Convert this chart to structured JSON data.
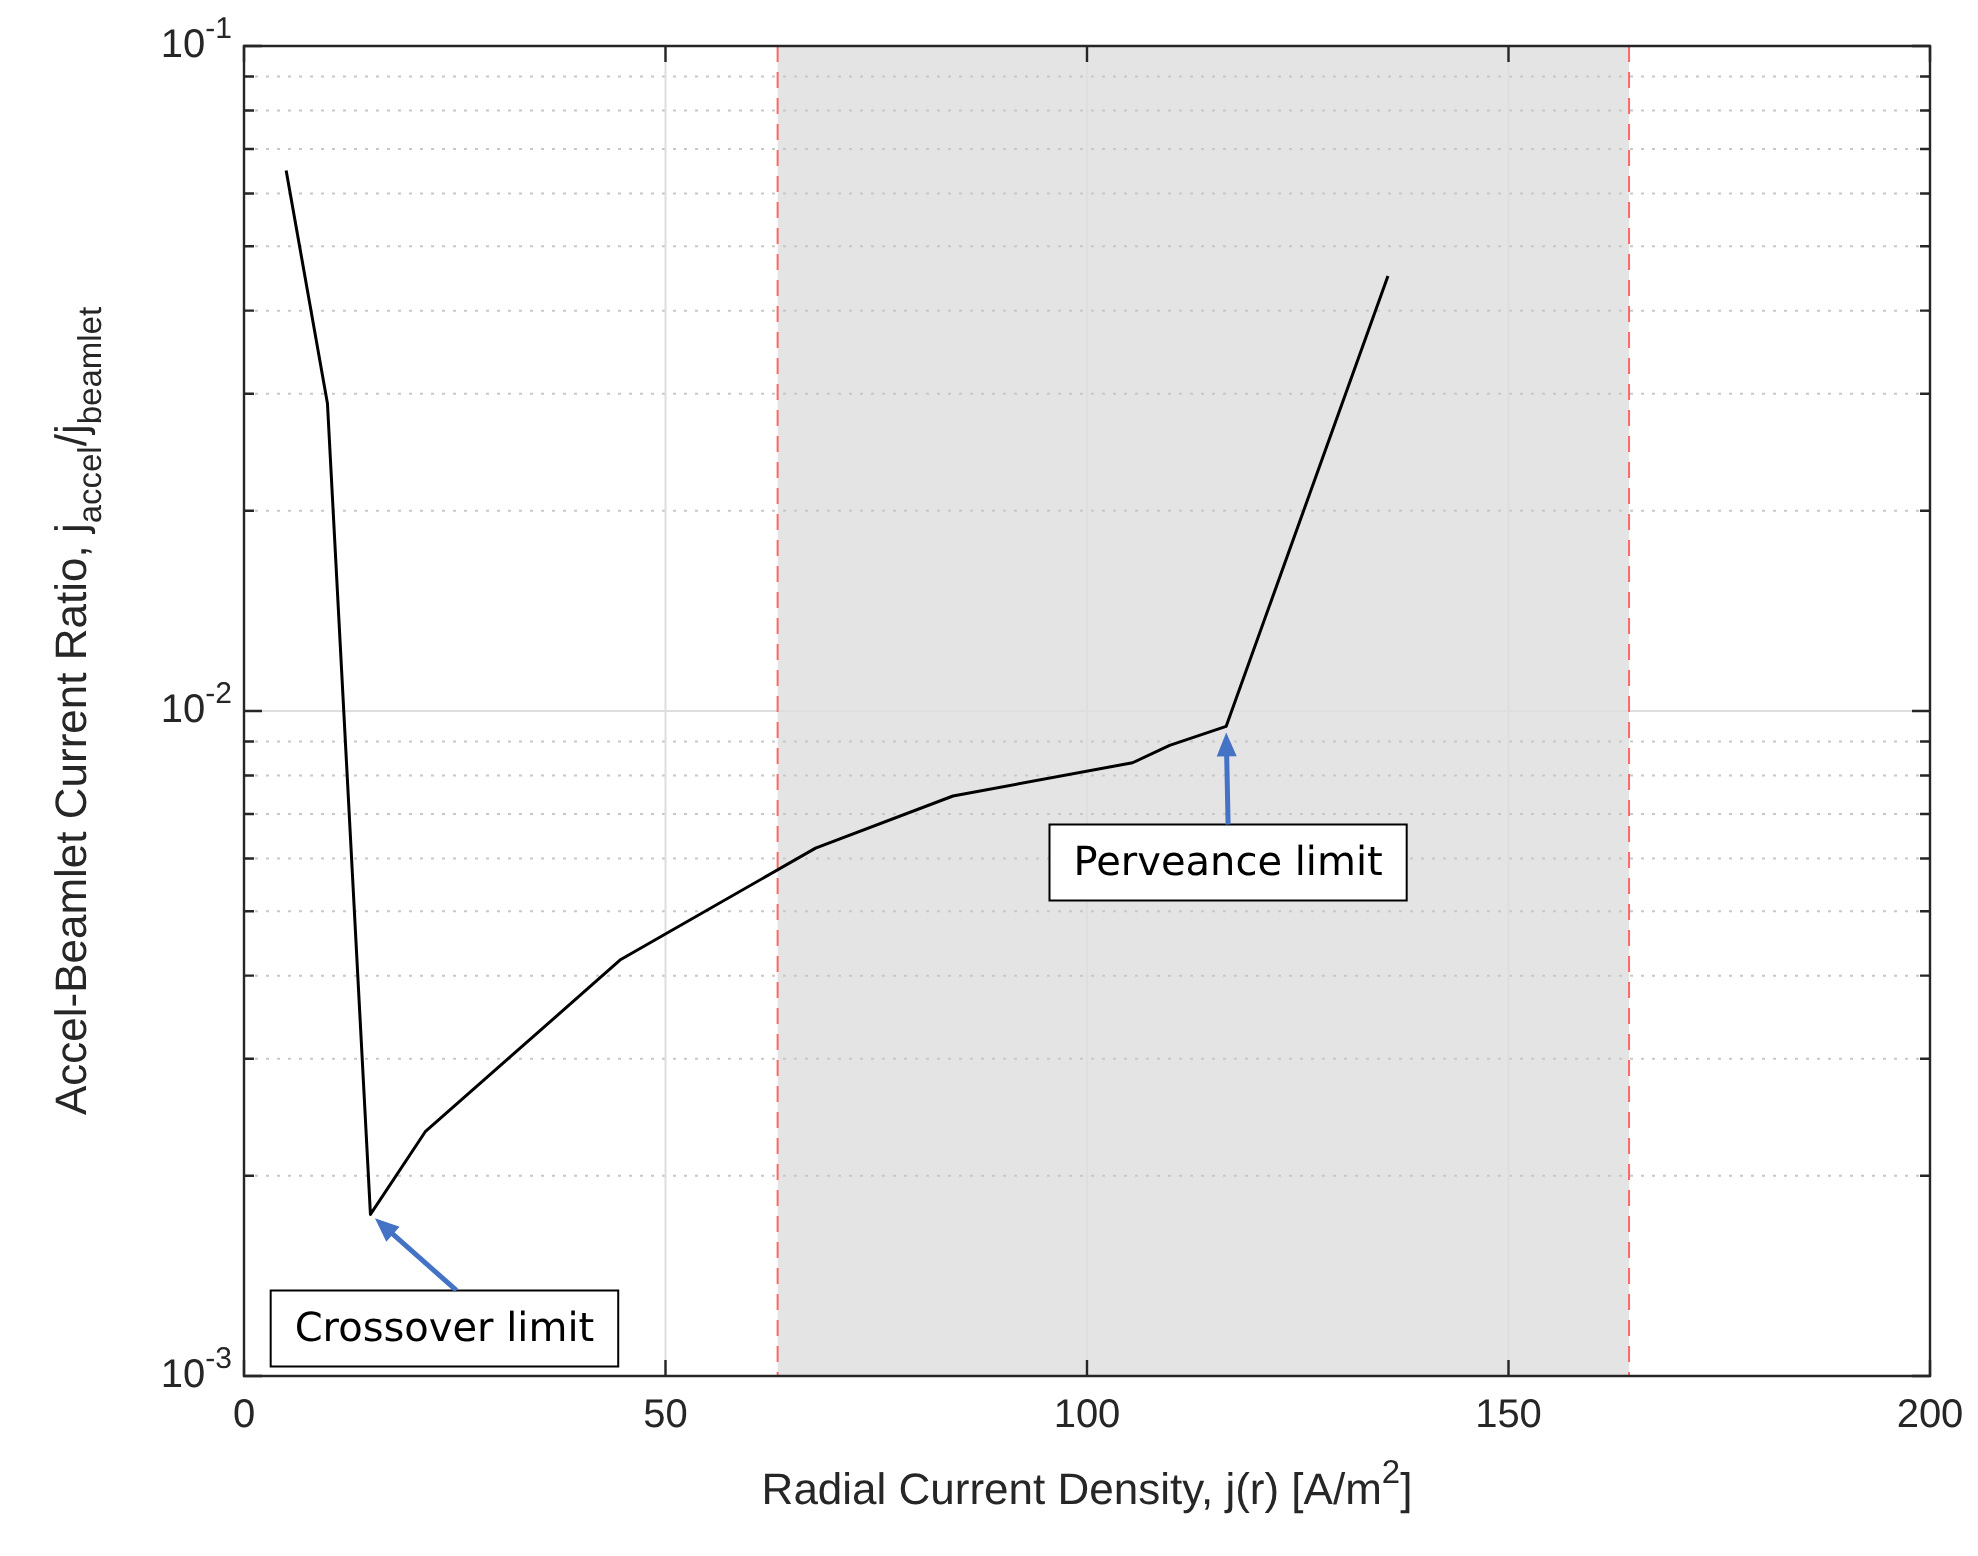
{
  "chart_data": {
    "type": "line",
    "xlabel": "Radial Current Density, j(r) [A/m$^{2}$]",
    "ylabel": "Accel-Beamlet Current Ratio, j$_{accel}$/j$_{beamlet}$",
    "x": [
      5,
      9.9,
      15,
      21.5,
      44.7,
      67.8,
      84.1,
      105.4,
      109.8,
      116.5,
      135.7
    ],
    "series": [
      {
        "color": "#000000",
        "values": [
          0.065,
          0.029,
          0.00175,
          0.00233,
          0.00423,
          0.00622,
          0.00745,
          0.00836,
          0.00888,
          0.00948,
          0.0451
        ]
      }
    ],
    "xlim": [
      0,
      200
    ],
    "xticks": [
      0,
      50,
      100,
      150,
      200
    ],
    "ylim": [
      0.001,
      0.1
    ],
    "yticks": [
      {
        "value": 0.001,
        "label": "10$^{-3}$"
      },
      {
        "value": 0.002,
        "label": null
      },
      {
        "value": 0.003,
        "label": null
      },
      {
        "value": 0.004,
        "label": null
      },
      {
        "value": 0.005,
        "label": null
      },
      {
        "value": 0.006,
        "label": null
      },
      {
        "value": 0.007,
        "label": null
      },
      {
        "value": 0.008,
        "label": null
      },
      {
        "value": 0.009,
        "label": null
      },
      {
        "value": 0.01,
        "label": "10$^{-2}$"
      },
      {
        "value": 0.02,
        "label": null
      },
      {
        "value": 0.03,
        "label": null
      },
      {
        "value": 0.04,
        "label": null
      },
      {
        "value": 0.05,
        "label": null
      },
      {
        "value": 0.06,
        "label": null
      },
      {
        "value": 0.07,
        "label": null
      },
      {
        "value": 0.08,
        "label": null
      },
      {
        "value": 0.09,
        "label": null
      },
      {
        "value": 0.1,
        "label": "10$^{-1}$"
      }
    ],
    "log": "y",
    "grid": true,
    "marker": "none",
    "line_style": "solid",
    "bands": [
      {
        "axis": "x",
        "from": 63.3,
        "to": 164.3,
        "color": "#e4e4e4"
      }
    ],
    "ref_lines": [
      {
        "axis": "x",
        "value": 63.3,
        "color": "#ff6666",
        "line_style": "dashed"
      },
      {
        "axis": "x",
        "value": 164.3,
        "color": "#ff6666",
        "line_style": "dashed"
      }
    ],
    "annotations": [
      {
        "text": "Crossover limit",
        "x": 15,
        "y": 0.00175
      },
      {
        "text": "Perveance limit",
        "x": 116.5,
        "y": 0.00948
      }
    ]
  }
}
